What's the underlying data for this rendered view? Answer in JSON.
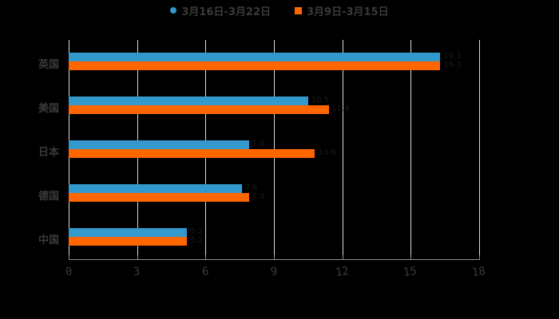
{
  "chart_data": {
    "type": "bar",
    "orientation": "horizontal",
    "title": "",
    "xlabel": "",
    "ylabel": "",
    "categories": [
      "英国",
      "美国",
      "日本",
      "德国",
      "中国"
    ],
    "series": [
      {
        "name": "3月16日-3月22日",
        "color": "#3399cc",
        "values": [
          16.3,
          10.5,
          7.9,
          7.6,
          5.2
        ]
      },
      {
        "name": "3月9日-3月15日",
        "color": "#ff6600",
        "values": [
          16.3,
          11.4,
          10.8,
          7.9,
          5.2
        ]
      }
    ],
    "xlim": [
      0,
      18
    ],
    "xticks": [
      "0",
      "3",
      "6",
      "9",
      "12",
      "15",
      "18"
    ],
    "grid": true,
    "legend_position": "top"
  },
  "legend": {
    "items": [
      {
        "label": "3月16日-3月22日",
        "color": "#3399cc",
        "shape": "circle"
      },
      {
        "label": "3月9日-3月15日",
        "color": "#ff6600",
        "shape": "square"
      }
    ]
  },
  "background": "#000000"
}
